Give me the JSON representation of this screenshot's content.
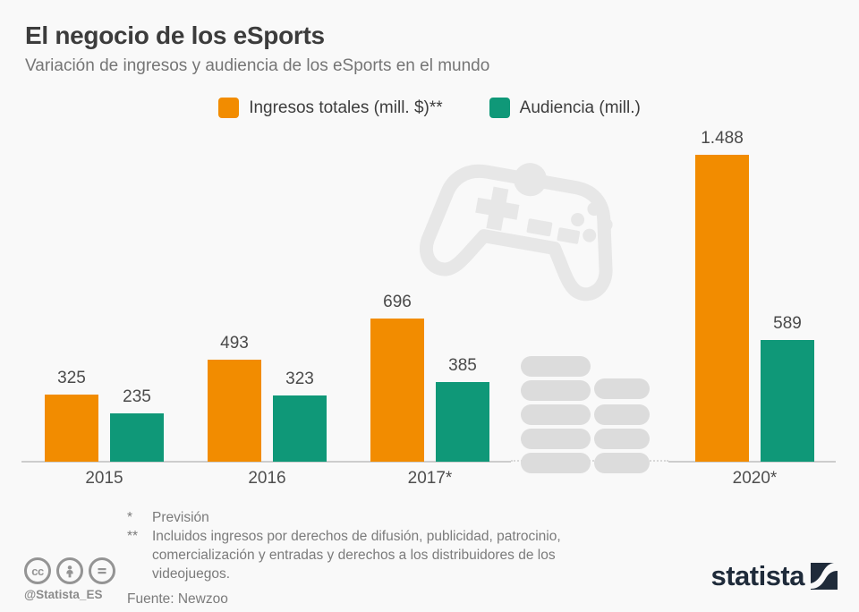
{
  "header": {
    "title": "El negocio de los eSports",
    "subtitle": "Variación de ingresos y audiencia de los eSports en el mundo"
  },
  "legend": {
    "items": [
      {
        "label": "Ingresos totales (mill. $)**",
        "color": "#F28C00"
      },
      {
        "label": "Audiencia (mill.)",
        "color": "#0F9878"
      }
    ]
  },
  "chart_data": {
    "type": "bar",
    "categories": [
      "2015",
      "2016",
      "2017*",
      "2020*"
    ],
    "series": [
      {
        "name": "Ingresos totales (mill. $)**",
        "color": "#F28C00",
        "values": [
          325,
          493,
          696,
          1488
        ],
        "labels": [
          "325",
          "493",
          "696",
          "1.488"
        ]
      },
      {
        "name": "Audiencia (mill.)",
        "color": "#0F9878",
        "values": [
          235,
          323,
          385,
          589
        ],
        "labels": [
          "235",
          "323",
          "385",
          "589"
        ]
      }
    ],
    "ylim": [
      0,
      1550
    ],
    "grid": false,
    "legend_position": "top-center",
    "axis_break": "dotted baseline gap between 2017* and 2020*",
    "watermarks": [
      "game-controller",
      "coin-stacks"
    ]
  },
  "footnotes": {
    "items": [
      {
        "marker": "*",
        "text": "Previsión"
      },
      {
        "marker": "**",
        "text": "Incluidos ingresos por derechos de difusión, publicidad, patrocinio, comercialización y entradas y derechos a los distribuidores de los videojuegos."
      }
    ],
    "source": "Fuente: Newzoo"
  },
  "branding": {
    "handle": "@Statista_ES",
    "logo_text": "statista",
    "license_icons": [
      "cc",
      "attribution",
      "equal"
    ],
    "logo_color": "#1f2b3a"
  }
}
